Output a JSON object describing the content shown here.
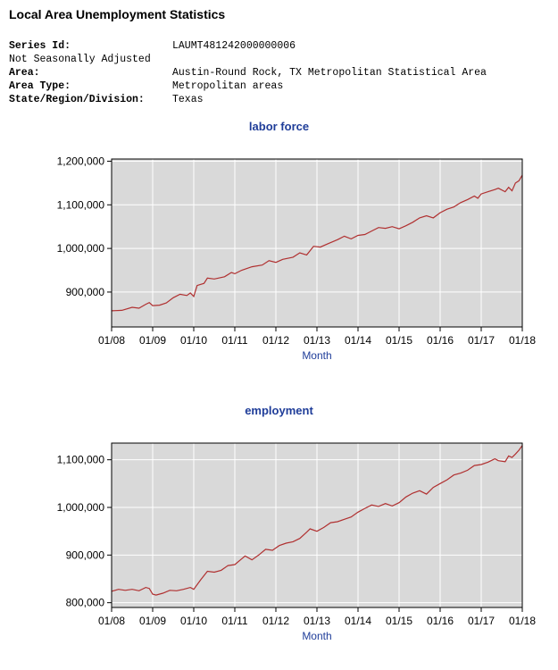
{
  "page": {
    "title": "Local Area Unemployment Statistics"
  },
  "meta": {
    "series_id_label": "Series Id:",
    "series_id": "LAUMT481242000000006",
    "seasonal": "Not Seasonally Adjusted",
    "area_label": "Area:",
    "area": "Austin-Round Rock, TX Metropolitan Statistical Area",
    "area_type_label": "Area Type:",
    "area_type": "Metropolitan areas",
    "state_label": "State/Region/Division:",
    "state": "Texas"
  },
  "colors": {
    "plot_bg": "#d9d9d9",
    "grid": "#ffffff",
    "line": "#b03030",
    "title": "#1f3d99"
  },
  "chart_data": [
    {
      "type": "line",
      "title": "labor force",
      "xlabel": "Month",
      "ylabel": "",
      "x_ticks": [
        "01/08",
        "01/09",
        "01/10",
        "01/11",
        "01/12",
        "01/13",
        "01/14",
        "01/15",
        "01/16",
        "01/17",
        "01/18"
      ],
      "y_ticks": [
        "900,000",
        "1,000,000",
        "1,100,000",
        "1,200,000"
      ],
      "y_tick_values": [
        900000,
        1000000,
        1100000,
        1200000
      ],
      "ylim": [
        820000,
        1205000
      ],
      "xlim": [
        0,
        120
      ],
      "grid": true,
      "series": [
        {
          "values": [
            {
              "x": 0,
              "y": 857000
            },
            {
              "x": 3,
              "y": 858000
            },
            {
              "x": 6,
              "y": 865000
            },
            {
              "x": 8,
              "y": 863000
            },
            {
              "x": 10,
              "y": 872000
            },
            {
              "x": 11,
              "y": 876000
            },
            {
              "x": 12,
              "y": 869000
            },
            {
              "x": 14,
              "y": 870000
            },
            {
              "x": 16,
              "y": 875000
            },
            {
              "x": 18,
              "y": 887000
            },
            {
              "x": 20,
              "y": 895000
            },
            {
              "x": 22,
              "y": 892000
            },
            {
              "x": 23,
              "y": 898000
            },
            {
              "x": 24,
              "y": 890000
            },
            {
              "x": 25,
              "y": 915000
            },
            {
              "x": 27,
              "y": 920000
            },
            {
              "x": 28,
              "y": 932000
            },
            {
              "x": 30,
              "y": 930000
            },
            {
              "x": 33,
              "y": 935000
            },
            {
              "x": 35,
              "y": 945000
            },
            {
              "x": 36,
              "y": 942000
            },
            {
              "x": 38,
              "y": 950000
            },
            {
              "x": 41,
              "y": 958000
            },
            {
              "x": 44,
              "y": 962000
            },
            {
              "x": 46,
              "y": 972000
            },
            {
              "x": 48,
              "y": 968000
            },
            {
              "x": 50,
              "y": 975000
            },
            {
              "x": 53,
              "y": 980000
            },
            {
              "x": 55,
              "y": 990000
            },
            {
              "x": 57,
              "y": 985000
            },
            {
              "x": 59,
              "y": 1005000
            },
            {
              "x": 61,
              "y": 1003000
            },
            {
              "x": 63,
              "y": 1010000
            },
            {
              "x": 66,
              "y": 1020000
            },
            {
              "x": 68,
              "y": 1028000
            },
            {
              "x": 70,
              "y": 1022000
            },
            {
              "x": 72,
              "y": 1030000
            },
            {
              "x": 74,
              "y": 1032000
            },
            {
              "x": 76,
              "y": 1040000
            },
            {
              "x": 78,
              "y": 1048000
            },
            {
              "x": 80,
              "y": 1046000
            },
            {
              "x": 82,
              "y": 1050000
            },
            {
              "x": 84,
              "y": 1045000
            },
            {
              "x": 86,
              "y": 1052000
            },
            {
              "x": 88,
              "y": 1060000
            },
            {
              "x": 90,
              "y": 1070000
            },
            {
              "x": 92,
              "y": 1075000
            },
            {
              "x": 94,
              "y": 1070000
            },
            {
              "x": 96,
              "y": 1082000
            },
            {
              "x": 98,
              "y": 1090000
            },
            {
              "x": 100,
              "y": 1095000
            },
            {
              "x": 102,
              "y": 1105000
            },
            {
              "x": 104,
              "y": 1112000
            },
            {
              "x": 106,
              "y": 1120000
            },
            {
              "x": 107,
              "y": 1115000
            },
            {
              "x": 108,
              "y": 1125000
            },
            {
              "x": 110,
              "y": 1130000
            },
            {
              "x": 112,
              "y": 1135000
            },
            {
              "x": 113,
              "y": 1138000
            },
            {
              "x": 115,
              "y": 1130000
            },
            {
              "x": 116,
              "y": 1140000
            },
            {
              "x": 117,
              "y": 1132000
            },
            {
              "x": 118,
              "y": 1150000
            },
            {
              "x": 119,
              "y": 1155000
            },
            {
              "x": 120,
              "y": 1168000
            }
          ]
        }
      ]
    },
    {
      "type": "line",
      "title": "employment",
      "xlabel": "Month",
      "ylabel": "",
      "x_ticks": [
        "01/08",
        "01/09",
        "01/10",
        "01/11",
        "01/12",
        "01/13",
        "01/14",
        "01/15",
        "01/16",
        "01/17",
        "01/18"
      ],
      "y_ticks": [
        "800,000",
        "900,000",
        "1,000,000",
        "1,100,000"
      ],
      "y_tick_values": [
        800000,
        900000,
        1000000,
        1100000
      ],
      "ylim": [
        790000,
        1135000
      ],
      "xlim": [
        0,
        120
      ],
      "grid": true,
      "series": [
        {
          "values": [
            {
              "x": 0,
              "y": 824000
            },
            {
              "x": 2,
              "y": 828000
            },
            {
              "x": 4,
              "y": 826000
            },
            {
              "x": 6,
              "y": 828000
            },
            {
              "x": 8,
              "y": 825000
            },
            {
              "x": 10,
              "y": 832000
            },
            {
              "x": 11,
              "y": 830000
            },
            {
              "x": 12,
              "y": 818000
            },
            {
              "x": 13,
              "y": 816000
            },
            {
              "x": 15,
              "y": 820000
            },
            {
              "x": 17,
              "y": 826000
            },
            {
              "x": 19,
              "y": 825000
            },
            {
              "x": 21,
              "y": 828000
            },
            {
              "x": 23,
              "y": 832000
            },
            {
              "x": 24,
              "y": 828000
            },
            {
              "x": 26,
              "y": 848000
            },
            {
              "x": 28,
              "y": 866000
            },
            {
              "x": 30,
              "y": 864000
            },
            {
              "x": 32,
              "y": 868000
            },
            {
              "x": 34,
              "y": 878000
            },
            {
              "x": 36,
              "y": 880000
            },
            {
              "x": 38,
              "y": 892000
            },
            {
              "x": 39,
              "y": 898000
            },
            {
              "x": 41,
              "y": 890000
            },
            {
              "x": 43,
              "y": 900000
            },
            {
              "x": 45,
              "y": 912000
            },
            {
              "x": 47,
              "y": 910000
            },
            {
              "x": 49,
              "y": 920000
            },
            {
              "x": 51,
              "y": 925000
            },
            {
              "x": 53,
              "y": 928000
            },
            {
              "x": 55,
              "y": 935000
            },
            {
              "x": 57,
              "y": 948000
            },
            {
              "x": 58,
              "y": 955000
            },
            {
              "x": 60,
              "y": 950000
            },
            {
              "x": 62,
              "y": 958000
            },
            {
              "x": 64,
              "y": 968000
            },
            {
              "x": 66,
              "y": 970000
            },
            {
              "x": 68,
              "y": 975000
            },
            {
              "x": 70,
              "y": 980000
            },
            {
              "x": 72,
              "y": 990000
            },
            {
              "x": 74,
              "y": 998000
            },
            {
              "x": 76,
              "y": 1005000
            },
            {
              "x": 78,
              "y": 1002000
            },
            {
              "x": 80,
              "y": 1008000
            },
            {
              "x": 82,
              "y": 1003000
            },
            {
              "x": 84,
              "y": 1010000
            },
            {
              "x": 86,
              "y": 1022000
            },
            {
              "x": 88,
              "y": 1030000
            },
            {
              "x": 90,
              "y": 1035000
            },
            {
              "x": 92,
              "y": 1028000
            },
            {
              "x": 94,
              "y": 1042000
            },
            {
              "x": 96,
              "y": 1050000
            },
            {
              "x": 98,
              "y": 1058000
            },
            {
              "x": 100,
              "y": 1068000
            },
            {
              "x": 102,
              "y": 1072000
            },
            {
              "x": 104,
              "y": 1078000
            },
            {
              "x": 106,
              "y": 1088000
            },
            {
              "x": 108,
              "y": 1090000
            },
            {
              "x": 110,
              "y": 1095000
            },
            {
              "x": 112,
              "y": 1102000
            },
            {
              "x": 113,
              "y": 1098000
            },
            {
              "x": 115,
              "y": 1096000
            },
            {
              "x": 116,
              "y": 1108000
            },
            {
              "x": 117,
              "y": 1105000
            },
            {
              "x": 118,
              "y": 1112000
            },
            {
              "x": 119,
              "y": 1120000
            },
            {
              "x": 120,
              "y": 1130000
            }
          ]
        }
      ]
    }
  ]
}
